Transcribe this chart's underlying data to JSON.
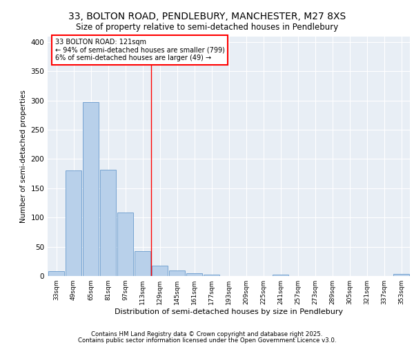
{
  "title1": "33, BOLTON ROAD, PENDLEBURY, MANCHESTER, M27 8XS",
  "title2": "Size of property relative to semi-detached houses in Pendlebury",
  "xlabel": "Distribution of semi-detached houses by size in Pendlebury",
  "ylabel": "Number of semi-detached properties",
  "categories": [
    "33sqm",
    "49sqm",
    "65sqm",
    "81sqm",
    "97sqm",
    "113sqm",
    "129sqm",
    "145sqm",
    "161sqm",
    "177sqm",
    "193sqm",
    "209sqm",
    "225sqm",
    "241sqm",
    "257sqm",
    "273sqm",
    "289sqm",
    "305sqm",
    "321sqm",
    "337sqm",
    "353sqm"
  ],
  "values": [
    8,
    180,
    297,
    182,
    108,
    43,
    18,
    9,
    5,
    2,
    0,
    0,
    0,
    2,
    0,
    0,
    0,
    0,
    0,
    0,
    4
  ],
  "bar_color": "#b8d0ea",
  "bar_edge_color": "#6699cc",
  "vline_x": 5.5,
  "annotation_title": "33 BOLTON ROAD: 121sqm",
  "annotation_line1": "← 94% of semi-detached houses are smaller (799)",
  "annotation_line2": "6% of semi-detached houses are larger (49) →",
  "ylim": [
    0,
    410
  ],
  "yticks": [
    0,
    50,
    100,
    150,
    200,
    250,
    300,
    350,
    400
  ],
  "footer1": "Contains HM Land Registry data © Crown copyright and database right 2025.",
  "footer2": "Contains public sector information licensed under the Open Government Licence v3.0.",
  "bg_color": "#e8eef5",
  "bar_width": 0.9
}
